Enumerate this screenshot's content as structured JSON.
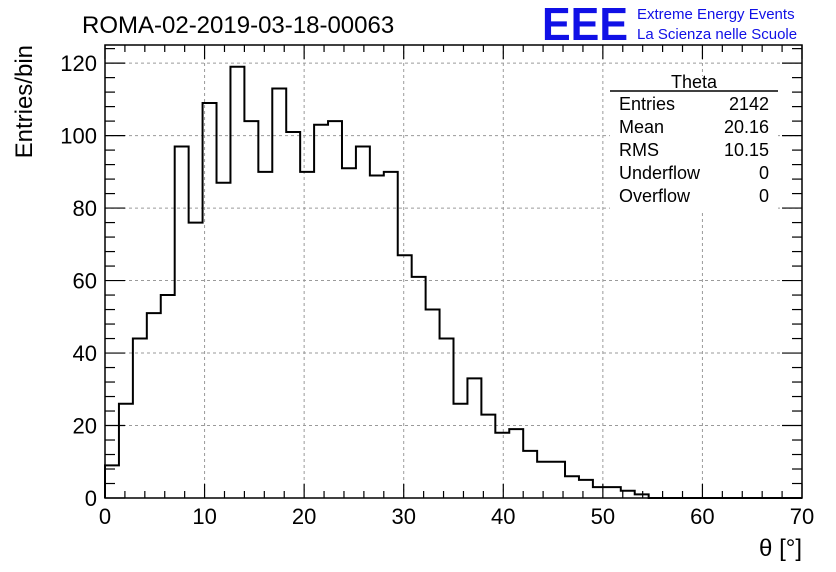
{
  "chart_data": {
    "type": "bar",
    "style": "step-histogram",
    "title": "ROMA-02-2019-03-18-00063",
    "xlabel": "θ [°]",
    "ylabel": "Entries/bin",
    "xlim": [
      0,
      70
    ],
    "ylim": [
      0,
      125
    ],
    "bin_width": 1.4,
    "grid": true,
    "x_ticks": [
      "0",
      "10",
      "20",
      "30",
      "40",
      "50",
      "60",
      "70"
    ],
    "x_tick_values": [
      0,
      10,
      20,
      30,
      40,
      50,
      60,
      70
    ],
    "y_ticks": [
      "0",
      "20",
      "40",
      "60",
      "80",
      "100",
      "120"
    ],
    "y_tick_values": [
      0,
      20,
      40,
      60,
      80,
      100,
      120
    ],
    "values": [
      9,
      26,
      44,
      51,
      56,
      97,
      76,
      109,
      87,
      119,
      104,
      90,
      113,
      101,
      90,
      103,
      104,
      91,
      97,
      89,
      90,
      67,
      61,
      52,
      44,
      26,
      33,
      23,
      18,
      19,
      13,
      10,
      10,
      6,
      5,
      3,
      3,
      2,
      1,
      0,
      0,
      0,
      0,
      0,
      0,
      0,
      0,
      0,
      0,
      0
    ],
    "stats_box": {
      "title": "Theta",
      "rows": [
        {
          "label": "Entries",
          "value": "2142"
        },
        {
          "label": "Mean",
          "value": "20.16"
        },
        {
          "label": "RMS",
          "value": "10.15"
        },
        {
          "label": "Underflow",
          "value": "0"
        },
        {
          "label": "Overflow",
          "value": "0"
        }
      ]
    }
  },
  "logo": {
    "mark": "EEE",
    "line1": "Extreme Energy Events",
    "line2": "La Scienza nelle Scuole",
    "color": "#1010e6"
  }
}
